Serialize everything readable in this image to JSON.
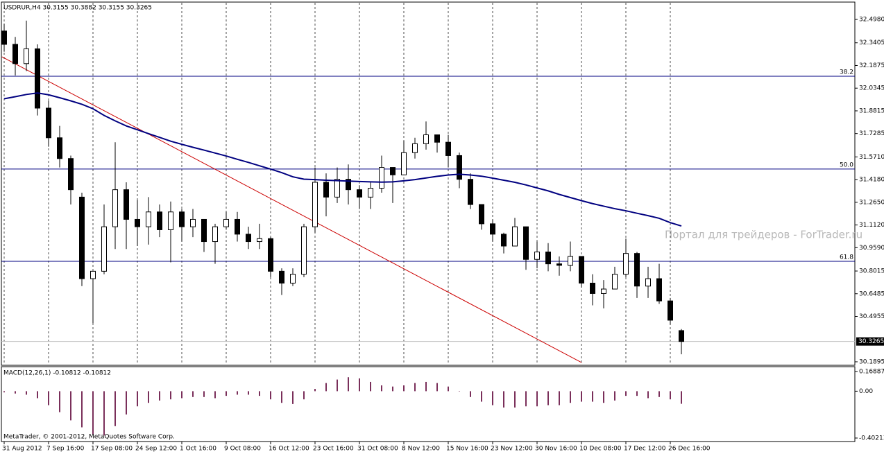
{
  "chart_data": [
    {
      "type": "candlestick",
      "title": "USDRUR,H4  30.3155 30.3882 30.3155 30.3265",
      "categories": [
        "31 Aug 2012",
        null,
        null,
        null,
        "7 Sep 16:00",
        null,
        null,
        null,
        "17 Sep 08:00",
        null,
        null,
        null,
        "24 Sep 12:00",
        null,
        null,
        null,
        "1 Oct 16:00",
        null,
        null,
        null,
        "9 Oct 08:00",
        null,
        null,
        null,
        "16 Oct 12:00",
        null,
        null,
        null,
        "23 Oct 16:00",
        null,
        null,
        null,
        "31 Oct 08:00",
        null,
        null,
        null,
        "8 Nov 12:00",
        null,
        null,
        null,
        "15 Nov 16:00",
        null,
        null,
        null,
        "23 Nov 12:00",
        null,
        null,
        null,
        "30 Nov 16:00",
        null,
        null,
        null,
        "10 Dec 08:00",
        null,
        null,
        null,
        "17 Dec 12:00",
        null,
        null,
        null,
        "26 Dec 16:00",
        null
      ],
      "open": [
        32.42,
        32.33,
        32.2,
        32.3,
        31.9,
        31.7,
        31.56,
        31.3,
        30.75,
        30.8,
        31.1,
        31.35,
        31.15,
        31.1,
        31.2,
        31.08,
        31.2,
        31.1,
        31.15,
        31.0,
        31.1,
        31.15,
        31.05,
        31.0,
        31.02,
        30.8,
        30.72,
        30.78,
        31.1,
        31.4,
        31.3,
        31.42,
        31.35,
        31.3,
        31.36,
        31.5,
        31.45,
        31.6,
        31.66,
        31.72,
        31.67,
        31.58,
        31.42,
        31.25,
        31.12,
        31.05,
        30.97,
        31.1,
        30.88,
        30.93,
        30.85,
        30.84,
        30.9,
        30.72,
        30.65,
        30.68,
        30.78,
        30.92,
        30.7,
        30.75,
        30.6,
        30.4
      ],
      "high": [
        32.47,
        32.38,
        32.49,
        32.33,
        31.95,
        31.78,
        31.58,
        31.33,
        30.8,
        31.25,
        31.67,
        31.4,
        31.28,
        31.3,
        31.25,
        31.27,
        31.22,
        31.22,
        31.15,
        31.12,
        31.2,
        31.2,
        31.1,
        31.12,
        31.03,
        30.82,
        30.82,
        31.12,
        31.5,
        31.46,
        31.5,
        31.52,
        31.38,
        31.4,
        31.58,
        31.5,
        31.68,
        31.7,
        31.81,
        31.72,
        31.72,
        31.6,
        31.46,
        31.25,
        31.15,
        31.06,
        31.16,
        31.1,
        31.0,
        30.99,
        30.9,
        31.0,
        30.9,
        30.78,
        30.74,
        30.83,
        31.02,
        30.93,
        30.83,
        30.85,
        30.62,
        30.41
      ],
      "low": [
        32.28,
        32.12,
        32.15,
        31.85,
        31.64,
        31.5,
        31.25,
        30.7,
        30.45,
        30.78,
        30.95,
        30.95,
        30.97,
        30.98,
        31.03,
        30.86,
        31.0,
        31.03,
        30.93,
        30.85,
        31.08,
        31.0,
        30.95,
        30.95,
        30.76,
        30.64,
        30.7,
        30.76,
        31.06,
        31.17,
        31.26,
        31.25,
        31.22,
        31.22,
        31.33,
        31.26,
        31.45,
        31.56,
        31.62,
        31.6,
        31.5,
        31.36,
        31.22,
        31.08,
        31.0,
        30.92,
        30.97,
        30.81,
        30.82,
        30.8,
        30.77,
        30.8,
        30.69,
        30.57,
        30.55,
        30.68,
        30.76,
        30.62,
        30.62,
        30.58,
        30.44,
        30.24
      ],
      "close": [
        32.33,
        32.2,
        32.3,
        31.9,
        31.7,
        31.56,
        31.35,
        30.75,
        30.8,
        31.1,
        31.35,
        31.15,
        31.1,
        31.2,
        31.08,
        31.2,
        31.1,
        31.15,
        31.0,
        31.1,
        31.15,
        31.05,
        31.0,
        31.02,
        30.8,
        30.72,
        30.78,
        31.1,
        31.4,
        31.3,
        31.42,
        31.35,
        31.3,
        31.36,
        31.5,
        31.45,
        31.6,
        31.66,
        31.72,
        31.67,
        31.58,
        31.42,
        31.25,
        31.12,
        31.05,
        30.97,
        31.1,
        30.88,
        30.93,
        30.85,
        30.84,
        30.9,
        30.72,
        30.65,
        30.68,
        30.78,
        30.92,
        30.7,
        30.75,
        30.6,
        30.47,
        30.3265
      ],
      "ylim": [
        30.166,
        32.615
      ],
      "yticks": [
        {
          "value": 32.498,
          "label": "32.4980"
        },
        32.3405,
        32.1875,
        32.0345,
        31.8815,
        31.7285,
        {
          "value": 31.571,
          "label": "31.5710"
        },
        {
          "value": 31.418,
          "label": "31.4180"
        },
        {
          "value": 31.265,
          "label": "31.2650"
        },
        {
          "value": 31.112,
          "label": "31.1120"
        },
        {
          "value": 30.959,
          "label": "30.9590"
        },
        30.8015,
        30.6485,
        30.4955,
        30.1895
      ],
      "grid": true,
      "current_price": 30.3265,
      "ma": {
        "color": "#000080",
        "values": [
          31.963,
          31.977,
          31.992,
          32.002,
          31.99,
          31.97,
          31.949,
          31.926,
          31.896,
          31.851,
          31.814,
          31.78,
          31.754,
          31.728,
          31.703,
          31.677,
          31.656,
          31.636,
          31.617,
          31.597,
          31.577,
          31.555,
          31.534,
          31.511,
          31.489,
          31.465,
          31.437,
          31.421,
          31.418,
          31.414,
          31.411,
          31.408,
          31.405,
          31.403,
          31.401,
          31.403,
          31.41,
          31.418,
          31.429,
          31.44,
          31.449,
          31.454,
          31.449,
          31.441,
          31.428,
          31.414,
          31.4,
          31.382,
          31.362,
          31.342,
          31.318,
          31.297,
          31.276,
          31.256,
          31.239,
          31.222,
          31.208,
          31.191,
          31.175,
          31.157,
          31.128,
          31.105
        ]
      },
      "trendline": {
        "color": "#cc0000",
        "x": [
          -0.2,
          52
        ],
        "y": [
          32.246,
          30.185
        ]
      },
      "levels": [
        {
          "label": "38.2",
          "value": 32.115
        },
        {
          "label": "50.0",
          "value": 31.489
        },
        {
          "label": "61.8",
          "value": 30.867
        }
      ],
      "level_color": "#000080",
      "watermark": "Портал для трейдеров - ForTrader.ru"
    },
    {
      "type": "histogram",
      "title": "MACD(12,26,1) -0.10812 -0.10812",
      "footnote": "MetaTrader, © 2001-2012, MetaQuotes Software Corp.",
      "color": "#7a2f5a",
      "values": [
        -0.01,
        -0.02,
        -0.03,
        -0.06,
        -0.12,
        -0.18,
        -0.25,
        -0.31,
        -0.37,
        -0.38,
        -0.3,
        -0.2,
        -0.13,
        -0.1,
        -0.08,
        -0.07,
        -0.06,
        -0.05,
        -0.05,
        -0.06,
        -0.04,
        -0.03,
        -0.03,
        -0.04,
        -0.07,
        -0.1,
        -0.11,
        -0.07,
        0.02,
        0.07,
        0.1,
        0.12,
        0.11,
        0.08,
        0.05,
        0.04,
        0.05,
        0.07,
        0.08,
        0.07,
        0.04,
        0.0,
        -0.05,
        -0.09,
        -0.12,
        -0.14,
        -0.14,
        -0.13,
        -0.13,
        -0.12,
        -0.12,
        -0.1,
        -0.09,
        -0.09,
        -0.1,
        -0.08,
        -0.04,
        -0.04,
        -0.06,
        -0.05,
        -0.07,
        -0.10812
      ],
      "ylim": [
        -0.432,
        0.2106
      ],
      "yticks": [
        0.16887,
        {
          "value": 0,
          "label": "0.00"
        },
        -0.40213
      ]
    }
  ]
}
